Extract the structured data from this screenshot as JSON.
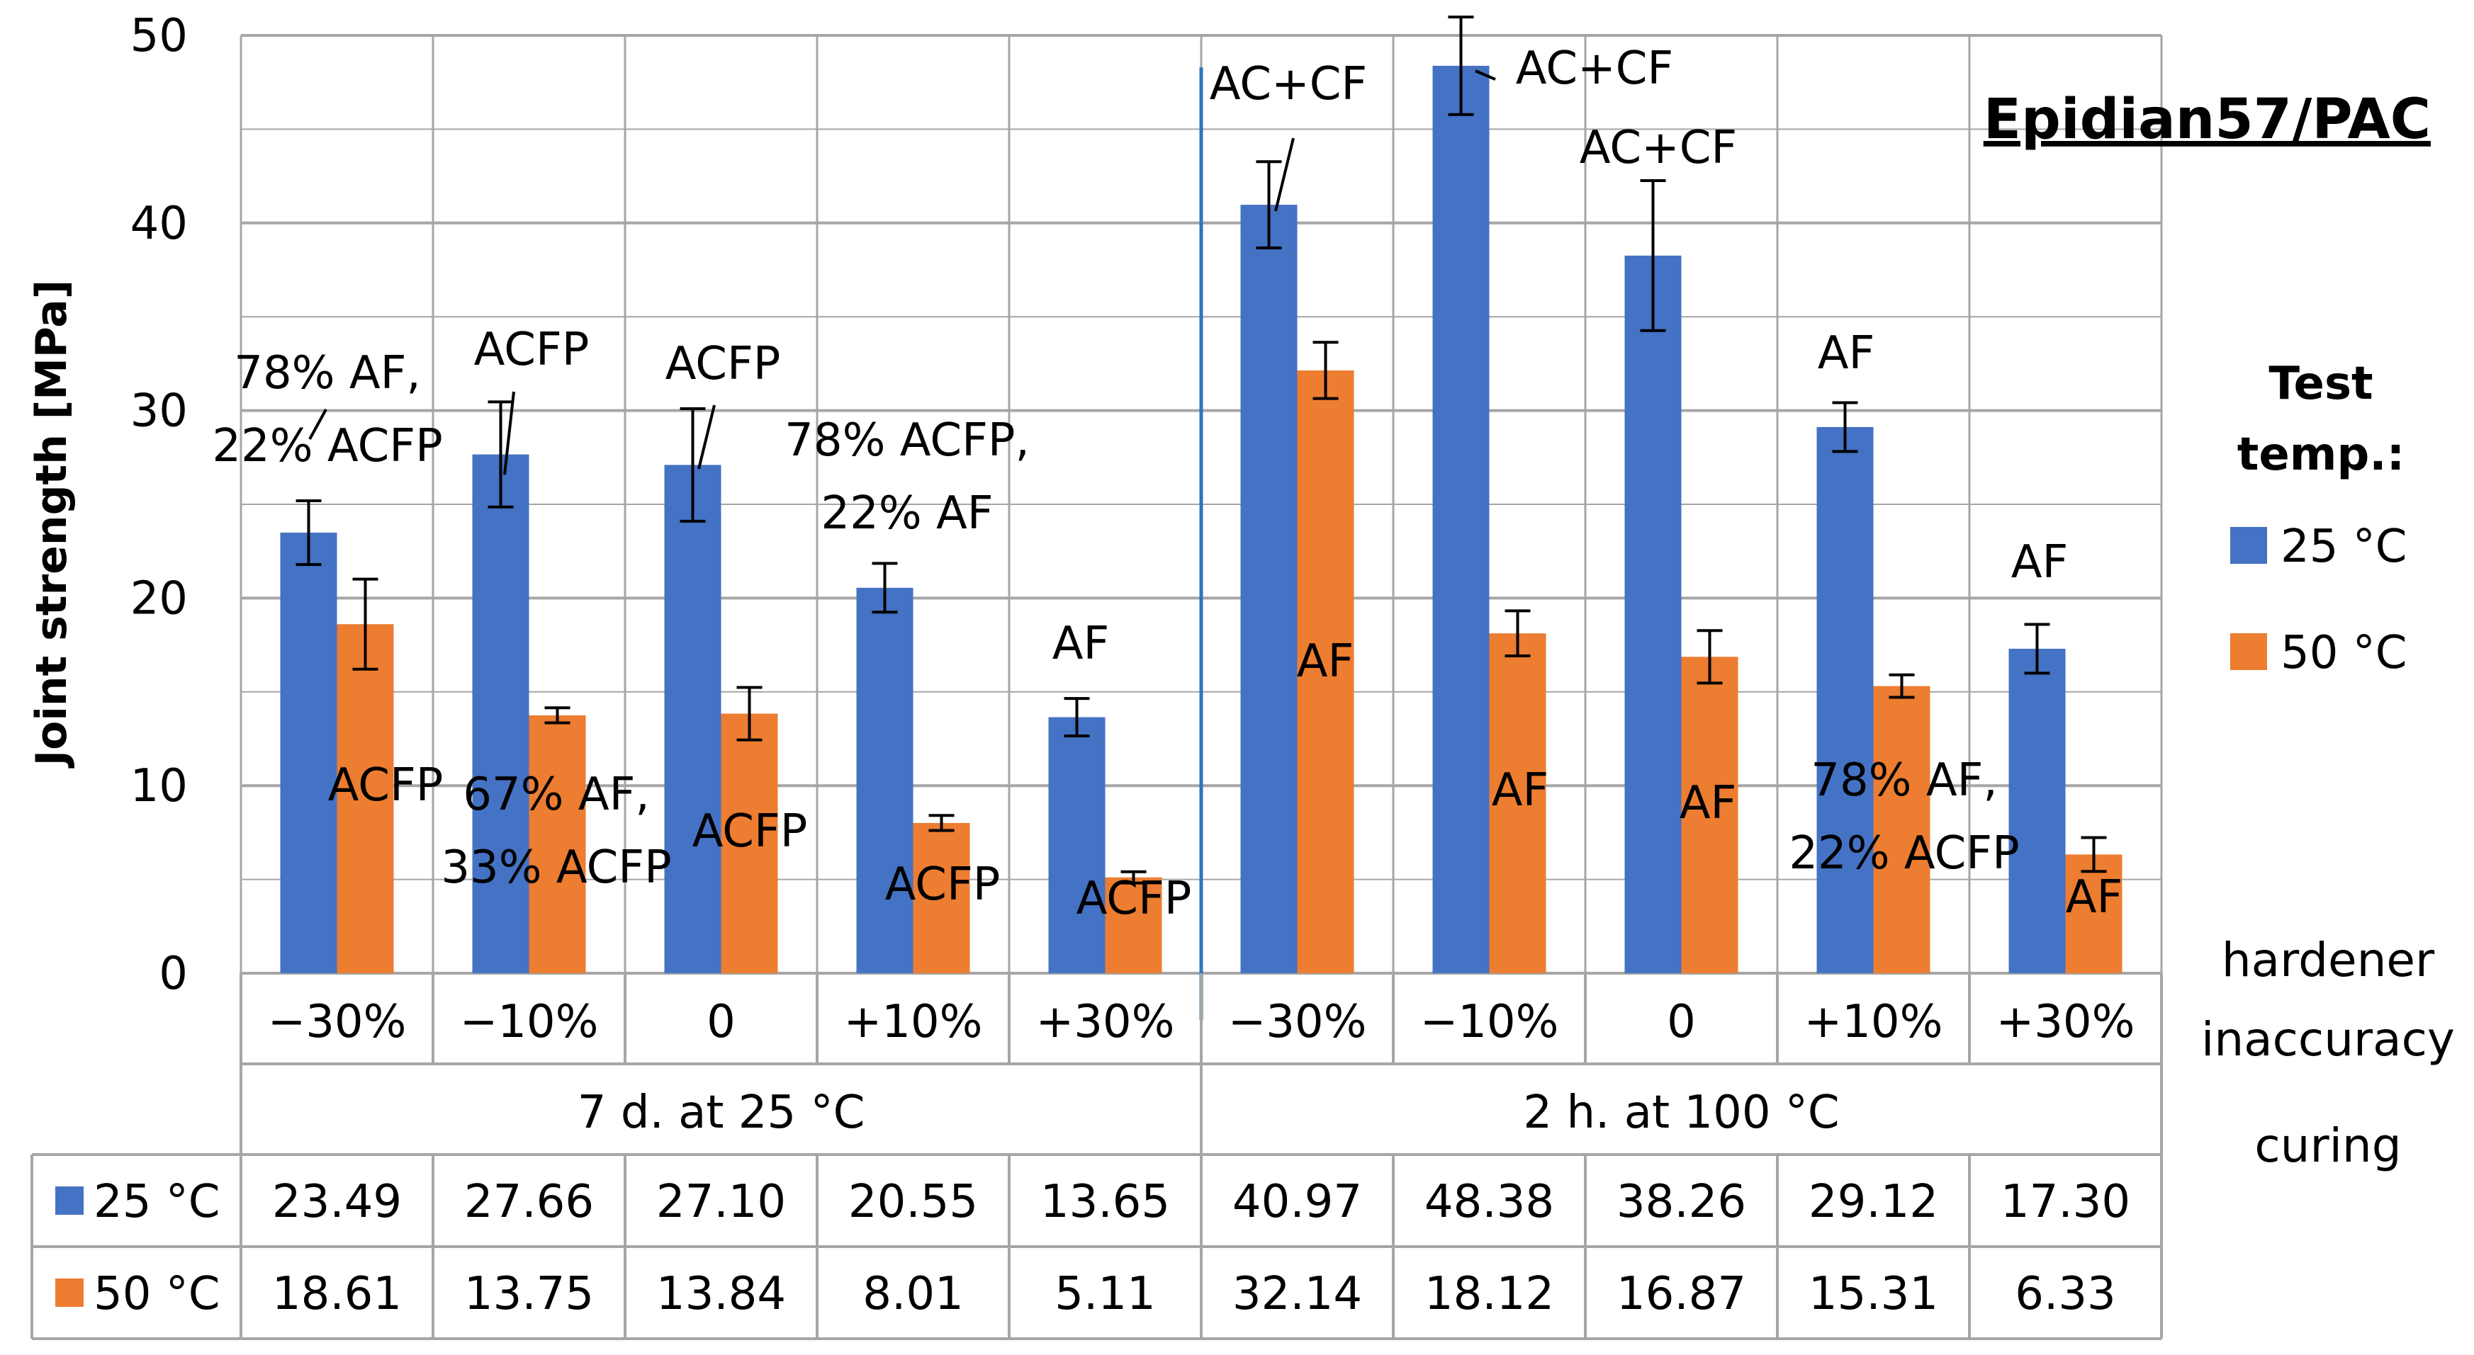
{
  "chart_data": {
    "type": "bar",
    "title": "Epidian57/PAC",
    "ylabel": "Joint strength [MPa]",
    "ylim": [
      0,
      50
    ],
    "yticks": [
      0,
      10,
      20,
      30,
      40,
      50
    ],
    "categories": [
      "−30%",
      "−10%",
      "0",
      "+10%",
      "+30%",
      "−30%",
      "−10%",
      "0",
      "+10%",
      "+30%"
    ],
    "groups": [
      {
        "label": "7 d. at 25 °C"
      },
      {
        "label": "2 h. at 100 °C"
      }
    ],
    "row_labels": {
      "hardener": "hardener inaccuracy",
      "curing": "curing"
    },
    "legend_title": "Test temp.:",
    "series": [
      {
        "name": "25 °C",
        "color": "#4472C4",
        "values": [
          23.49,
          27.66,
          27.1,
          20.55,
          13.65,
          40.97,
          48.38,
          38.26,
          29.12,
          17.3
        ],
        "table_values": [
          "23.49",
          "27.66",
          "27.10",
          "20.55",
          "13.65",
          "40.97",
          "48.38",
          "38.26",
          "29.12",
          "17.30"
        ],
        "errors": [
          1.7,
          2.8,
          3.0,
          1.3,
          1.0,
          2.3,
          2.6,
          4.0,
          1.3,
          1.3
        ]
      },
      {
        "name": "50 °C",
        "color": "#ED7D31",
        "values": [
          18.61,
          13.75,
          13.84,
          8.01,
          5.11,
          32.14,
          18.12,
          16.87,
          15.31,
          6.33
        ],
        "table_values": [
          "18.61",
          "13.75",
          "13.84",
          "8.01",
          "5.11",
          "32.14",
          "18.12",
          "16.87",
          "15.31",
          "6.33"
        ],
        "errors": [
          2.4,
          0.4,
          1.4,
          0.4,
          0.3,
          1.5,
          1.2,
          1.4,
          0.6,
          0.9
        ]
      }
    ],
    "annotations": [
      {
        "text": [
          "78% AF,",
          "22% ACFP"
        ],
        "series": 0,
        "cat": 0
      },
      {
        "text": [
          "ACFP"
        ],
        "series": 0,
        "cat": 1
      },
      {
        "text": [
          "ACFP"
        ],
        "series": 0,
        "cat": 2
      },
      {
        "text": [
          "78% ACFP,",
          "22% AF"
        ],
        "series": 0,
        "cat": 3
      },
      {
        "text": [
          "AF"
        ],
        "series": 0,
        "cat": 4
      },
      {
        "text": [
          "AC+CF"
        ],
        "series": 0,
        "cat": 5
      },
      {
        "text": [
          "AC+CF"
        ],
        "series": 0,
        "cat": 6
      },
      {
        "text": [
          "AC+CF"
        ],
        "series": 0,
        "cat": 7
      },
      {
        "text": [
          "AF"
        ],
        "series": 0,
        "cat": 8
      },
      {
        "text": [
          "AF"
        ],
        "series": 0,
        "cat": 9
      },
      {
        "text": [
          "ACFP"
        ],
        "series": 1,
        "cat": 0
      },
      {
        "text": [
          "67% AF,",
          "33% ACFP"
        ],
        "series": 1,
        "cat": 1
      },
      {
        "text": [
          "ACFP"
        ],
        "series": 1,
        "cat": 2
      },
      {
        "text": [
          "ACFP"
        ],
        "series": 1,
        "cat": 3
      },
      {
        "text": [
          "ACFP"
        ],
        "series": 1,
        "cat": 4
      },
      {
        "text": [
          "AF"
        ],
        "series": 1,
        "cat": 5
      },
      {
        "text": [
          "AF"
        ],
        "series": 1,
        "cat": 6
      },
      {
        "text": [
          "AF"
        ],
        "series": 1,
        "cat": 7
      },
      {
        "text": [
          "78% AF,",
          "22% ACFP"
        ],
        "series": 1,
        "cat": 8
      },
      {
        "text": [
          "AF"
        ],
        "series": 1,
        "cat": 9
      }
    ]
  }
}
